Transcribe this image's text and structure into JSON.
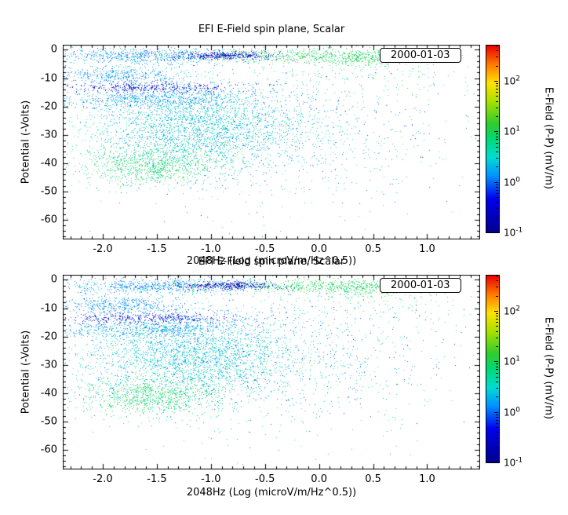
{
  "page": {
    "background": "#ffffff",
    "text_color": "#000000"
  },
  "chart_data": {
    "type": "scatter",
    "panels": [
      {
        "title": "EFI  E-Field spin plane, Scalar",
        "date_label": "2000-01-03",
        "seed": 1337
      },
      {
        "title": "EFI  E-Field spin plane, Scalar",
        "date_label": "2000-01-03",
        "seed": 8088
      }
    ],
    "xlabel": "2048Hz (Log (microV/m/Hz^0.5))",
    "ylabel": "Potential (-Volts)",
    "xlim": [
      -2.37,
      1.49
    ],
    "ylim": [
      -67,
      1.8
    ],
    "xticks": [
      -2.0,
      -1.5,
      -1.0,
      -0.5,
      0.0,
      0.5,
      1.0
    ],
    "yticks": [
      0,
      -10,
      -20,
      -30,
      -40,
      -50,
      -60
    ],
    "x_minor_step": 0.1,
    "y_minor_step": 2,
    "colorbar": {
      "label": "E-Field (P-P) (mV/m)",
      "log_range": [
        -1,
        2.7
      ],
      "tick_exponents": [
        2,
        1,
        0,
        -1
      ]
    },
    "clusters": [
      {
        "n": 700,
        "cx": -1.55,
        "sx": 0.45,
        "cy": -2.2,
        "sy": 1.4,
        "v0": -0.2,
        "v1": 0.5
      },
      {
        "n": 500,
        "cx": -0.15,
        "sx": 0.55,
        "cy": -2.2,
        "sy": 1.2,
        "v0": 0.7,
        "v1": 1.3
      },
      {
        "n": 350,
        "cx": -0.85,
        "sx": 0.22,
        "cy": -2.0,
        "sy": 0.7,
        "v0": -0.95,
        "v1": -0.45
      },
      {
        "n": 260,
        "cx": 0.45,
        "sx": 0.25,
        "cy": -3.0,
        "sy": 1.6,
        "v0": 0.7,
        "v1": 1.2
      },
      {
        "n": 450,
        "cx": -1.85,
        "sx": 0.3,
        "cy": -9.0,
        "sy": 1.6,
        "v0": -0.1,
        "v1": 0.4
      },
      {
        "n": 420,
        "cx": -1.55,
        "sx": 0.4,
        "cy": -13.5,
        "sy": 1.0,
        "v0": -0.8,
        "v1": -0.25
      },
      {
        "n": 600,
        "cx": -1.6,
        "sx": 0.45,
        "cy": -17.5,
        "sy": 1.6,
        "v0": -0.15,
        "v1": 0.45
      },
      {
        "n": 2600,
        "cx": -1.15,
        "sx": 0.5,
        "cy": -27.0,
        "sy": 7.5,
        "v0": 0.0,
        "v1": 0.85
      },
      {
        "n": 900,
        "cx": -1.55,
        "sx": 0.33,
        "cy": -41.0,
        "sy": 3.5,
        "v0": 0.6,
        "v1": 1.2
      },
      {
        "n": 900,
        "cx": -0.55,
        "sx": 0.85,
        "cy": -30.0,
        "sy": 13.0,
        "v0": -0.2,
        "v1": 0.8
      },
      {
        "n": 350,
        "cx": -0.3,
        "sx": 1.0,
        "cy": -22.0,
        "sy": 16.0,
        "v0": -0.6,
        "v1": 1.4
      },
      {
        "n": 150,
        "cx": 0.5,
        "sx": 0.45,
        "cy": -8.0,
        "sy": 5.0,
        "v0": 0.6,
        "v1": 1.2
      }
    ]
  },
  "colormap": {
    "stops": [
      [
        0.0,
        "#00008b"
      ],
      [
        0.18,
        "#0000f0"
      ],
      [
        0.3,
        "#0090ff"
      ],
      [
        0.4,
        "#00dcd2"
      ],
      [
        0.5,
        "#00d975"
      ],
      [
        0.58,
        "#2ecc2e"
      ],
      [
        0.7,
        "#a8e000"
      ],
      [
        0.8,
        "#ffe100"
      ],
      [
        0.9,
        "#ff7800"
      ],
      [
        1.0,
        "#e80000"
      ]
    ]
  }
}
